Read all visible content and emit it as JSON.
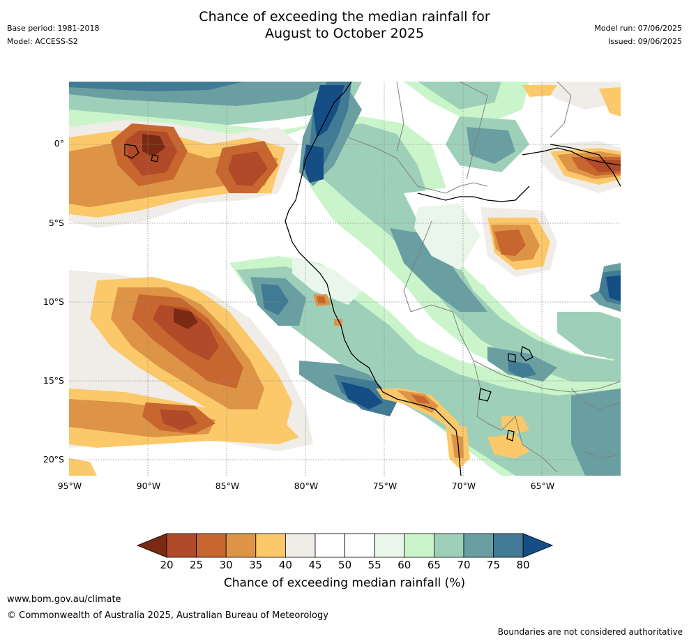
{
  "header": {
    "title_line1": "Chance of exceeding the median rainfall for",
    "title_line2": "August to October 2025",
    "base_period": "Base period: 1981-2018",
    "model": "Model: ACCESS-S2",
    "model_run": "Model run: 07/06/2025",
    "issued": "Issued: 09/06/2025"
  },
  "map": {
    "lat_ticks": [
      "0°",
      "5°S",
      "10°S",
      "15°S",
      "20°S"
    ],
    "lon_ticks": [
      "95°W",
      "90°W",
      "85°W",
      "80°W",
      "75°W",
      "70°W",
      "65°W"
    ],
    "gridline_color": "#888888",
    "coastline_color": "#000000",
    "border_color": "#808080"
  },
  "colorbar": {
    "tick_labels": [
      "20",
      "25",
      "30",
      "35",
      "40",
      "45",
      "50",
      "55",
      "60",
      "65",
      "70",
      "75",
      "80"
    ],
    "colors": [
      "#7a2a12",
      "#b14a28",
      "#c8662f",
      "#de9446",
      "#fcc96a",
      "#f0ece8",
      "#ffffff",
      "#ffffff",
      "#eaf6ea",
      "#caf5ca",
      "#9ed0b9",
      "#6a9fa2",
      "#417a94",
      "#154e85"
    ],
    "label": "Chance of exceeding median rainfall (%)"
  },
  "footer": {
    "url": "www.bom.gov.au/climate",
    "copyright": "© Commonwealth of Australia 2025, Australian Bureau of Meteorology",
    "disclaimer": "Boundaries are not considered authoritative"
  }
}
